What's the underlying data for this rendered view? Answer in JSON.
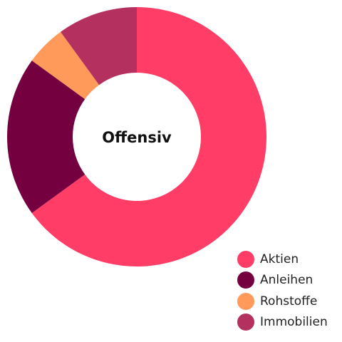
{
  "chart_data": {
    "type": "pie",
    "title": "",
    "center_label": "Offensiv",
    "legend_position": "bottom-right",
    "series": [
      {
        "values": [
          65,
          20,
          5,
          10
        ]
      }
    ],
    "categories": [
      "Aktien",
      "Anleihen",
      "Rohstoffe",
      "Immobilien"
    ],
    "colors": [
      "#ff3d67",
      "#74003f",
      "#ff9a5a",
      "#b3305f"
    ],
    "legend": [
      {
        "label": "Aktien",
        "color": "#ff3d67"
      },
      {
        "label": "Anleihen",
        "color": "#74003f"
      },
      {
        "label": "Rohstoffe",
        "color": "#ff9a5a"
      },
      {
        "label": "Immobilien",
        "color": "#b3305f"
      }
    ]
  }
}
